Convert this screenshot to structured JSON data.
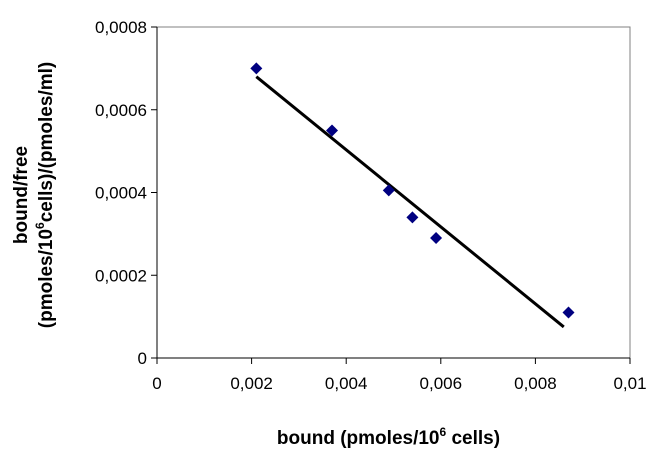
{
  "chart_data": {
    "type": "scatter",
    "xlabel": {
      "prefix": "bound (pmoles/10",
      "superscript": "6",
      "suffix": " cells)"
    },
    "ylabel": {
      "line1": "bound/free",
      "line2_prefix": "(pmoles/10",
      "line2_superscript": "6",
      "line2_suffix": "cells)/(pmoles/ml)"
    },
    "xlim": [
      0,
      0.01
    ],
    "ylim": [
      0,
      0.0008
    ],
    "x_ticks": [
      0,
      0.002,
      0.004,
      0.006,
      0.008,
      0.01
    ],
    "y_ticks": [
      0,
      0.0002,
      0.0004,
      0.0006,
      0.0008
    ],
    "x_tick_labels": [
      "0",
      "0,002",
      "0,004",
      "0,006",
      "0,008",
      "0,01"
    ],
    "y_tick_labels": [
      "0",
      "0,0002",
      "0,0004",
      "0,0006",
      "0,0008"
    ],
    "grid": false,
    "legend": "none",
    "series": [
      {
        "type": "scatter",
        "marker": "diamond",
        "color": "#000080",
        "points": [
          {
            "x": 0.0021,
            "y": 0.0007
          },
          {
            "x": 0.0037,
            "y": 0.00055
          },
          {
            "x": 0.0049,
            "y": 0.000405
          },
          {
            "x": 0.0054,
            "y": 0.00034
          },
          {
            "x": 0.0059,
            "y": 0.00029
          },
          {
            "x": 0.0087,
            "y": 0.00011
          }
        ]
      },
      {
        "type": "line",
        "trendline": "linear",
        "color": "#000000",
        "points": [
          {
            "x": 0.0021,
            "y": 0.00068
          },
          {
            "x": 0.0086,
            "y": 7.5e-05
          }
        ]
      }
    ]
  }
}
